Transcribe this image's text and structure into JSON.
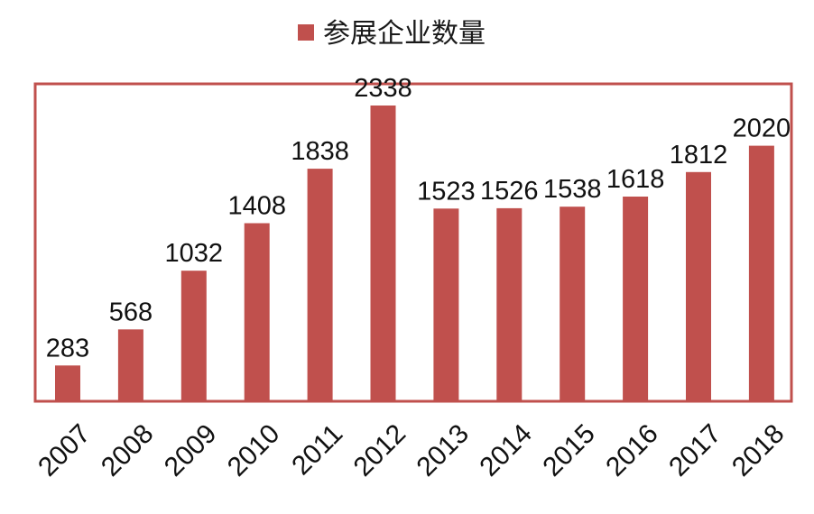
{
  "chart_data": {
    "type": "bar",
    "legend": {
      "placement": "top",
      "entries": [
        "参展企业数量"
      ]
    },
    "categories": [
      "2007",
      "2008",
      "2009",
      "2010",
      "2011",
      "2012",
      "2013",
      "2014",
      "2015",
      "2016",
      "2017",
      "2018"
    ],
    "series": [
      {
        "name": "参展企业数量",
        "values": [
          283,
          568,
          1032,
          1408,
          1838,
          2338,
          1523,
          1526,
          1538,
          1618,
          1812,
          2020
        ]
      }
    ],
    "ylim": [
      0,
      2500
    ],
    "grid": false,
    "colors": {
      "bar": "#c0504d",
      "frame": "#c0504d"
    }
  }
}
